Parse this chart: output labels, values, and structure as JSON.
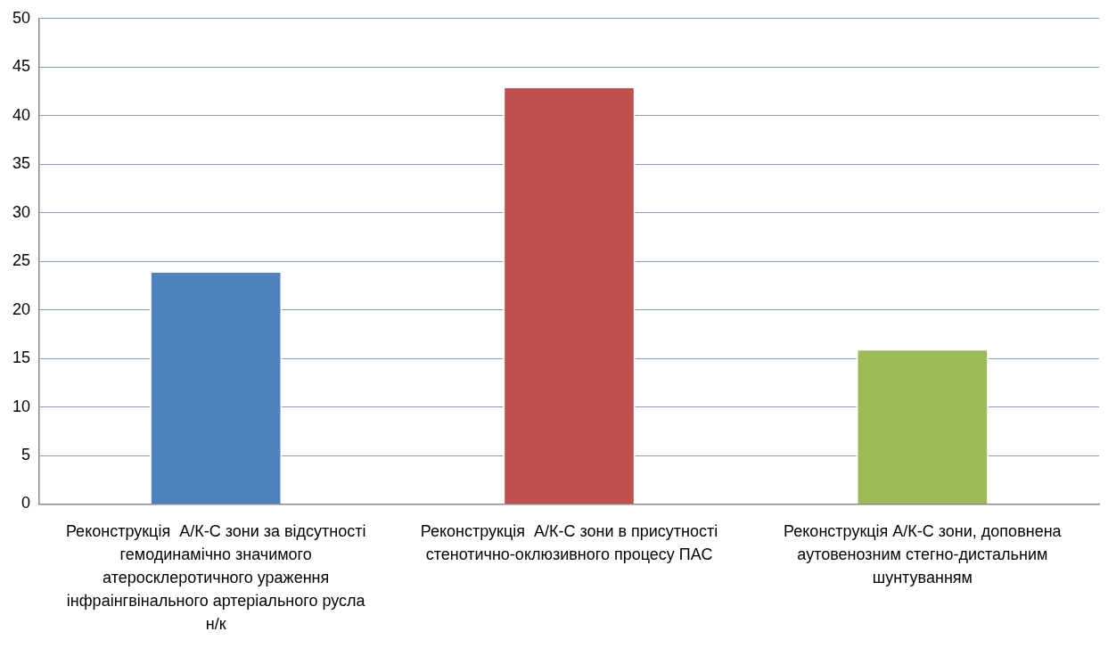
{
  "chart_data": {
    "type": "bar",
    "categories": [
      "Реконструкція  А/К-С зони за відсутності гемодинамічно значимого атеросклеротичного ураження інфраінгвінального артеріального русла н/к",
      "Реконструкція  А/К-С зони в присутності стенотично-оклюзивного процесу ПАС",
      "Реконструкція А/К-С зони, доповнена аутовенозним стегно-дистальним шунтуванням"
    ],
    "values": [
      24,
      43,
      16
    ],
    "colors": [
      "#4f81bd",
      "#c0504d",
      "#9bbb59"
    ],
    "ylim": [
      0,
      50
    ],
    "yticks": [
      0,
      5,
      10,
      15,
      20,
      25,
      30,
      35,
      40,
      45,
      50
    ],
    "grid": "y",
    "legend": false
  }
}
